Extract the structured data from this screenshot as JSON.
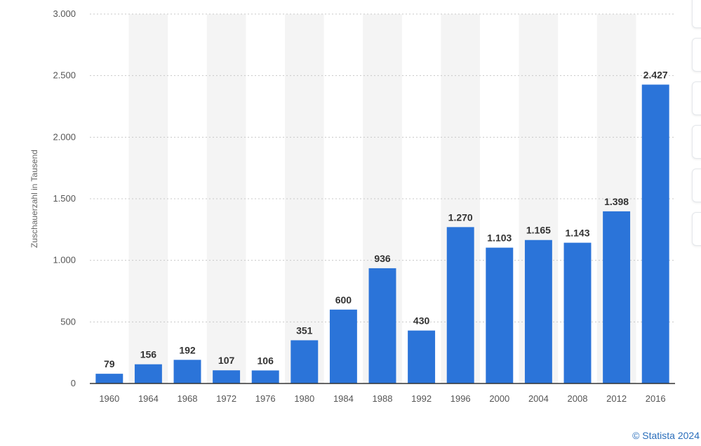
{
  "chart_data": {
    "type": "bar",
    "title": "",
    "xlabel": "",
    "ylabel": "Zuschauerzahl in Tausend",
    "ylim": [
      0,
      3000
    ],
    "yticks": [
      0,
      500,
      1000,
      1500,
      2000,
      2500,
      3000
    ],
    "ytick_labels": [
      "0",
      "500",
      "1.000",
      "1.500",
      "2.000",
      "2.500",
      "3.000"
    ],
    "categories": [
      "1960",
      "1964",
      "1968",
      "1972",
      "1976",
      "1980",
      "1984",
      "1988",
      "1992",
      "1996",
      "2000",
      "2004",
      "2008",
      "2012",
      "2016"
    ],
    "values": [
      79,
      156,
      192,
      107,
      106,
      351,
      600,
      936,
      430,
      1270,
      1103,
      1165,
      1143,
      1398,
      2427
    ],
    "value_labels": [
      "79",
      "156",
      "192",
      "107",
      "106",
      "351",
      "600",
      "936",
      "430",
      "1.270",
      "1.103",
      "1.165",
      "1.143",
      "1.398",
      "2.427"
    ],
    "bar_color": "#2b74d9",
    "band_color": "#f4f4f4",
    "grid": true,
    "legend": "none"
  },
  "source": "© Statista 2024",
  "side_panel": {
    "buttons": 6
  }
}
